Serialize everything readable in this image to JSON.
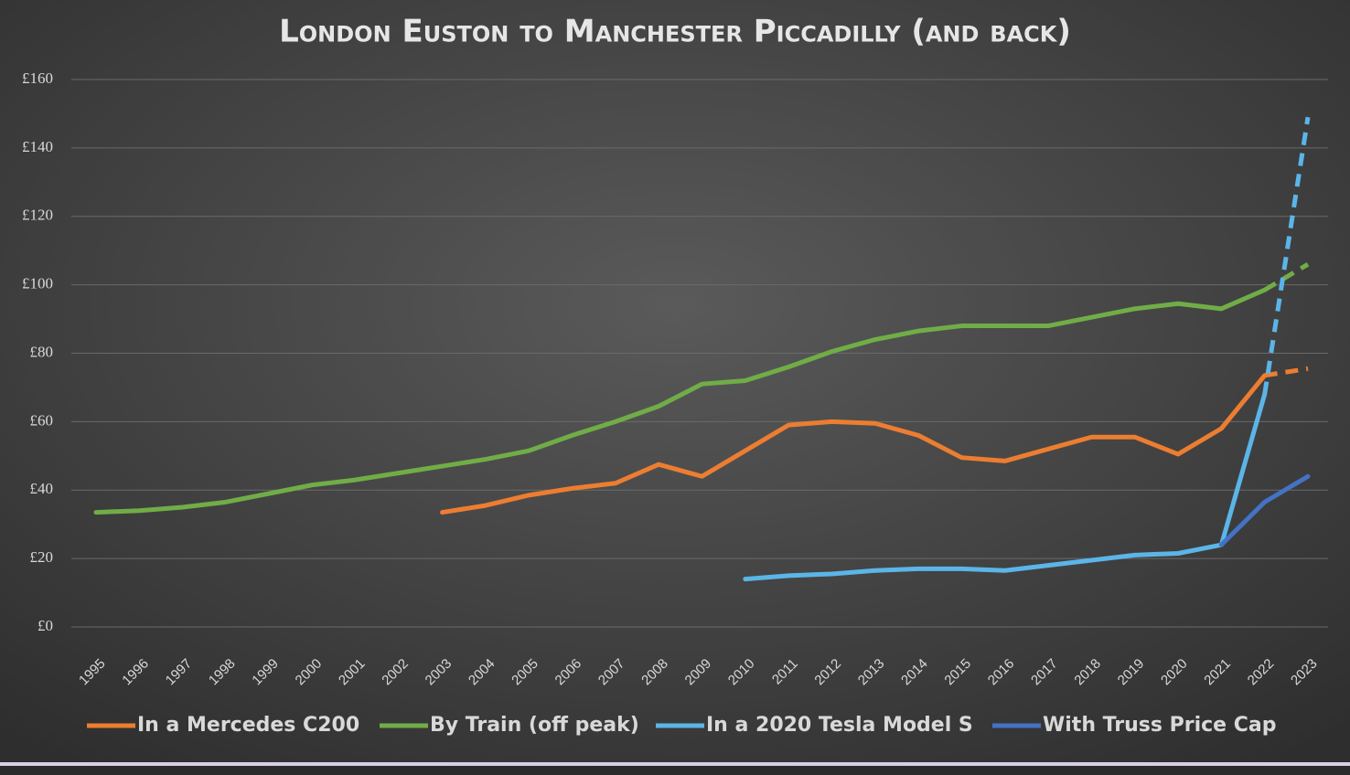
{
  "chart_data": {
    "type": "line",
    "title": "London Euston to Manchester Piccadilly (and back)",
    "categories": [
      "1995",
      "1996",
      "1997",
      "1998",
      "1999",
      "2000",
      "2001",
      "2002",
      "2003",
      "2004",
      "2005",
      "2006",
      "2007",
      "2008",
      "2009",
      "2010",
      "2011",
      "2012",
      "2013",
      "2014",
      "2015",
      "2016",
      "2017",
      "2018",
      "2019",
      "2020",
      "2021",
      "2022",
      "2023"
    ],
    "series": [
      {
        "name": "In a Mercedes C200",
        "color": "#ED7D31",
        "dashed_last_segment": true,
        "values": [
          null,
          null,
          null,
          null,
          null,
          null,
          null,
          null,
          33.5,
          35.5,
          38.5,
          40.5,
          42,
          47.5,
          44,
          51.5,
          59,
          60,
          59.5,
          56,
          49.5,
          48.5,
          52,
          55.5,
          55.5,
          50.5,
          58,
          73.5,
          75.5
        ]
      },
      {
        "name": "By Train (off peak)",
        "color": "#70AD47",
        "dashed_last_segment": true,
        "values": [
          33.5,
          34,
          35,
          36.5,
          39,
          41.5,
          43,
          45,
          47,
          49,
          51.5,
          56,
          60,
          64.5,
          71,
          72,
          76,
          80.5,
          84,
          86.5,
          88,
          88,
          88,
          90.5,
          93,
          94.5,
          93,
          98.5,
          106
        ]
      },
      {
        "name": "In a 2020 Tesla Model S",
        "color": "#5BB5E8",
        "dashed_last_segment": true,
        "values": [
          null,
          null,
          null,
          null,
          null,
          null,
          null,
          null,
          null,
          null,
          null,
          null,
          null,
          null,
          null,
          14,
          15,
          15.5,
          16.5,
          17,
          17,
          16.5,
          18,
          19.5,
          21,
          21.5,
          24,
          68,
          149
        ]
      },
      {
        "name": "With Truss Price Cap",
        "color": "#4472C4",
        "dashed_last_segment": false,
        "values": [
          null,
          null,
          null,
          null,
          null,
          null,
          null,
          null,
          null,
          null,
          null,
          null,
          null,
          null,
          null,
          null,
          null,
          null,
          null,
          null,
          null,
          null,
          null,
          null,
          null,
          null,
          24,
          36.5,
          44
        ]
      }
    ],
    "ylim": [
      0,
      160
    ],
    "yticks": [
      {
        "value": 0,
        "label": "£0"
      },
      {
        "value": 20,
        "label": "£20"
      },
      {
        "value": 40,
        "label": "£40"
      },
      {
        "value": 60,
        "label": "£60"
      },
      {
        "value": 80,
        "label": "£80"
      },
      {
        "value": 100,
        "label": "£100"
      },
      {
        "value": 120,
        "label": "£120"
      },
      {
        "value": 140,
        "label": "£140"
      },
      {
        "value": 160,
        "label": "£160"
      }
    ],
    "grid": true,
    "legend": "bottom"
  }
}
